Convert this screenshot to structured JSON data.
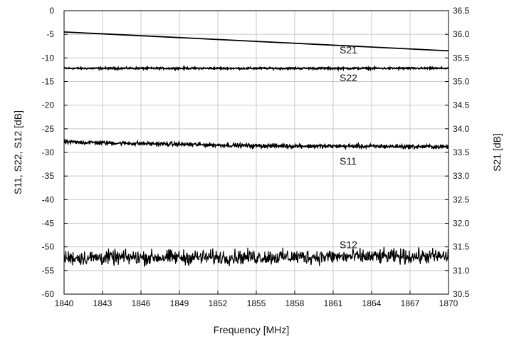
{
  "chart_data": {
    "type": "line",
    "title": "",
    "xlabel": "Frequency [MHz]",
    "ylabel_left": "S11, S22, S12 [dB]",
    "ylabel_right": "S21 [dB]",
    "xlim": [
      1840,
      1870
    ],
    "ylim_left": [
      -60,
      0
    ],
    "ylim_right": [
      30.5,
      36.5
    ],
    "x_ticks": [
      "1840",
      "1843",
      "1846",
      "1849",
      "1852",
      "1855",
      "1858",
      "1861",
      "1864",
      "1867",
      "1870"
    ],
    "y_left_ticks": [
      "0",
      "-5",
      "-10",
      "-15",
      "-20",
      "-25",
      "-30",
      "-35",
      "-40",
      "-45",
      "-50",
      "-55",
      "-60"
    ],
    "y_right_ticks": [
      "36.5",
      "36.0",
      "35.5",
      "35.0",
      "34.5",
      "34.0",
      "33.5",
      "33.0",
      "32.5",
      "32.0",
      "31.5",
      "31.0",
      "30.5"
    ],
    "grid": true,
    "legend": "none",
    "series": [
      {
        "name": "S21",
        "axis": "right",
        "x": [
          1840,
          1870
        ],
        "values": [
          36.05,
          35.65
        ],
        "noise": 0.0
      },
      {
        "name": "S22",
        "axis": "left",
        "x": [
          1840,
          1870
        ],
        "values": [
          -12.2,
          -12.2
        ],
        "noise": 0.15
      },
      {
        "name": "S11",
        "axis": "left",
        "x": [
          1840,
          1855,
          1870
        ],
        "values": [
          -27.8,
          -28.6,
          -28.8
        ],
        "noise": 0.35
      },
      {
        "name": "S12",
        "axis": "left",
        "x": [
          1840,
          1870
        ],
        "values": [
          -52.3,
          -52.0
        ],
        "noise": 1.3
      }
    ],
    "annotations": [
      {
        "text": "S21",
        "x": 1861.5,
        "y_left": -8.3
      },
      {
        "text": "S22",
        "x": 1861.5,
        "y_left": -14.2
      },
      {
        "text": "S11",
        "x": 1861.5,
        "y_left": -31.8
      },
      {
        "text": "S12",
        "x": 1861.5,
        "y_left": -49.5
      }
    ]
  }
}
